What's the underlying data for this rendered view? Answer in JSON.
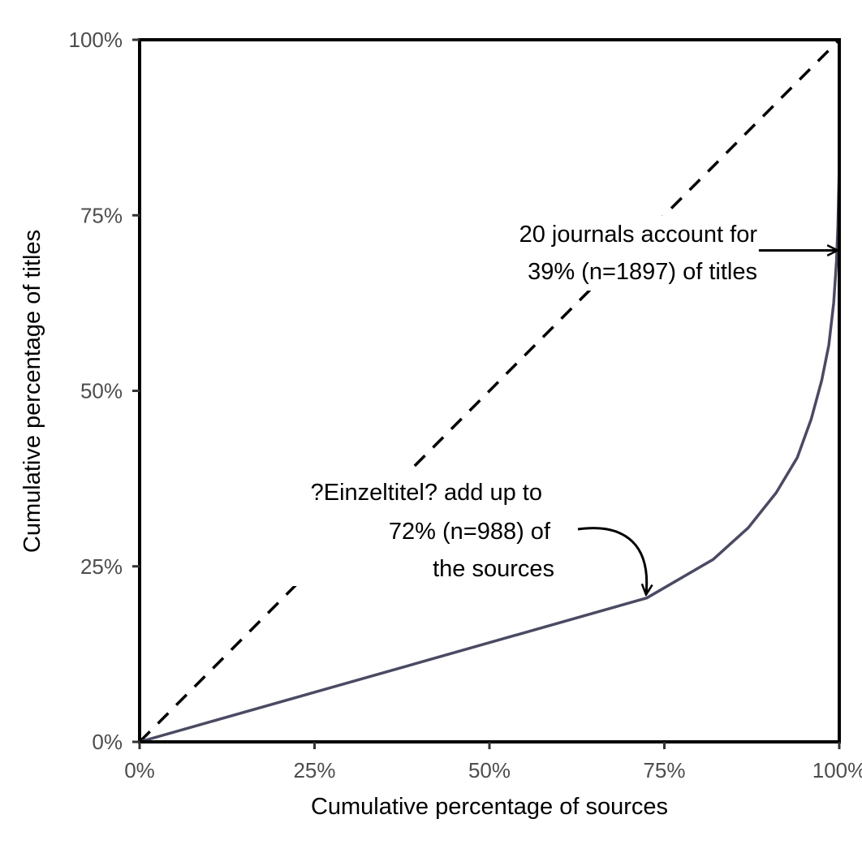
{
  "chart_data": {
    "type": "line",
    "xlabel": "Cumulative percentage of sources",
    "ylabel": "Cumulative percentage of titles",
    "xlim": [
      0,
      100
    ],
    "ylim": [
      0,
      100
    ],
    "x_ticks": [
      0,
      25,
      50,
      75,
      100
    ],
    "y_ticks": [
      0,
      25,
      50,
      75,
      100
    ],
    "x_tick_labels": [
      "0%",
      "25%",
      "50%",
      "75%",
      "100%"
    ],
    "y_tick_labels": [
      "0%",
      "25%",
      "50%",
      "75%",
      "100%"
    ],
    "grid": false,
    "series": [
      {
        "style": "solid",
        "color": "#4a4a63",
        "x": [
          0,
          72.5,
          82,
          87,
          91,
          94,
          96,
          97.5,
          98.5,
          99.2,
          99.6,
          99.8,
          100
        ],
        "y": [
          0,
          20.5,
          26,
          30.5,
          35.5,
          40.5,
          46,
          51.5,
          56.5,
          62.5,
          68.5,
          73.5,
          82
        ]
      },
      {
        "style": "dashed",
        "color": "#000000",
        "x": [
          0,
          100
        ],
        "y": [
          0,
          100
        ]
      }
    ],
    "annotations": [
      {
        "lines": [
          "20 journals account for",
          "39% (n=1897) of titles"
        ],
        "arrow_to": [
          100,
          70
        ],
        "arrow_from": [
          88.5,
          70
        ]
      },
      {
        "lines": [
          "?Einzeltitel? add up to",
          "72% (n=988) of",
          "the sources"
        ],
        "arrow_to": [
          72.5,
          20.5
        ],
        "arrow_from": [
          62.5,
          30
        ]
      }
    ]
  }
}
